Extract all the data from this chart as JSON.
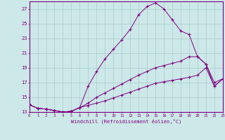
{
  "xlabel": "Windchill (Refroidissement éolien,°C)",
  "bg_color": "#cce8e8",
  "grid_color": "#aacccc",
  "line_color": "#800080",
  "xlim": [
    0,
    23
  ],
  "ylim": [
    13,
    28
  ],
  "xticks": [
    0,
    1,
    2,
    3,
    4,
    5,
    6,
    7,
    8,
    9,
    10,
    11,
    12,
    13,
    14,
    15,
    16,
    17,
    18,
    19,
    20,
    21,
    22,
    23
  ],
  "yticks": [
    13,
    15,
    17,
    19,
    21,
    23,
    25,
    27
  ],
  "series1_x": [
    0,
    1,
    2,
    3,
    4,
    5,
    6,
    7,
    8,
    9,
    10,
    11,
    12,
    13,
    14,
    15,
    16,
    17,
    18,
    19,
    20,
    21,
    22,
    23
  ],
  "series1_y": [
    14.0,
    13.5,
    13.4,
    13.2,
    13.0,
    13.1,
    13.6,
    16.5,
    18.5,
    20.2,
    21.5,
    22.8,
    24.2,
    26.2,
    27.3,
    27.8,
    27.0,
    25.5,
    24.0,
    23.5,
    20.5,
    19.5,
    17.0,
    17.5
  ],
  "series2_x": [
    0,
    1,
    2,
    3,
    4,
    5,
    6,
    7,
    8,
    9,
    10,
    11,
    12,
    13,
    14,
    15,
    16,
    17,
    18,
    19,
    20,
    21,
    22,
    23
  ],
  "series2_y": [
    14.0,
    13.5,
    13.4,
    13.2,
    13.0,
    13.1,
    13.6,
    14.2,
    15.0,
    15.6,
    16.2,
    16.8,
    17.4,
    18.0,
    18.5,
    19.0,
    19.3,
    19.6,
    19.9,
    20.5,
    20.5,
    19.5,
    16.5,
    17.5
  ],
  "series3_x": [
    0,
    1,
    2,
    3,
    4,
    5,
    6,
    7,
    8,
    9,
    10,
    11,
    12,
    13,
    14,
    15,
    16,
    17,
    18,
    19,
    20,
    21,
    22,
    23
  ],
  "series3_y": [
    14.0,
    13.5,
    13.4,
    13.2,
    13.0,
    13.1,
    13.6,
    13.9,
    14.2,
    14.5,
    14.9,
    15.3,
    15.7,
    16.1,
    16.5,
    16.9,
    17.1,
    17.3,
    17.5,
    17.7,
    18.0,
    19.0,
    16.5,
    17.5
  ]
}
